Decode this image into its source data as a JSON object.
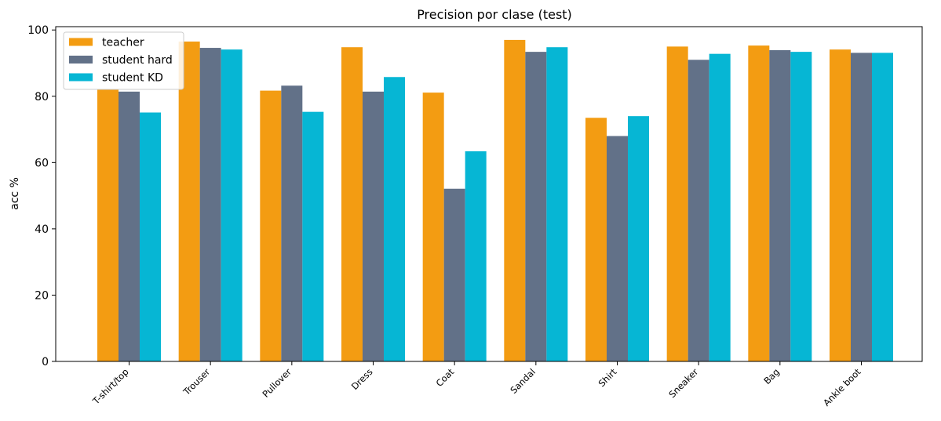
{
  "chart_data": {
    "type": "bar",
    "title": "Precision por clase (test)",
    "xlabel": "",
    "ylabel": "acc %",
    "ylim": [
      0,
      101
    ],
    "yticks": [
      0,
      20,
      40,
      60,
      80,
      100
    ],
    "grid": false,
    "legend_position": "top-left",
    "categories": [
      "T-shirt/top",
      "Trouser",
      "Pullover",
      "Dress",
      "Coat",
      "Sandal",
      "Shirt",
      "Sneaker",
      "Bag",
      "Ankle boot"
    ],
    "series": [
      {
        "name": "teacher",
        "color": "#f39c12",
        "values": [
          82.0,
          96.5,
          81.7,
          94.8,
          81.1,
          97.0,
          73.5,
          95.0,
          95.3,
          94.1
        ]
      },
      {
        "name": "student hard",
        "color": "#627188",
        "values": [
          81.4,
          94.6,
          83.2,
          81.4,
          52.1,
          93.4,
          68.0,
          91.0,
          93.9,
          93.1
        ]
      },
      {
        "name": "student KD",
        "color": "#06b6d4",
        "values": [
          75.1,
          94.1,
          75.3,
          85.8,
          63.4,
          94.8,
          74.0,
          92.8,
          93.4,
          93.1
        ]
      }
    ]
  }
}
